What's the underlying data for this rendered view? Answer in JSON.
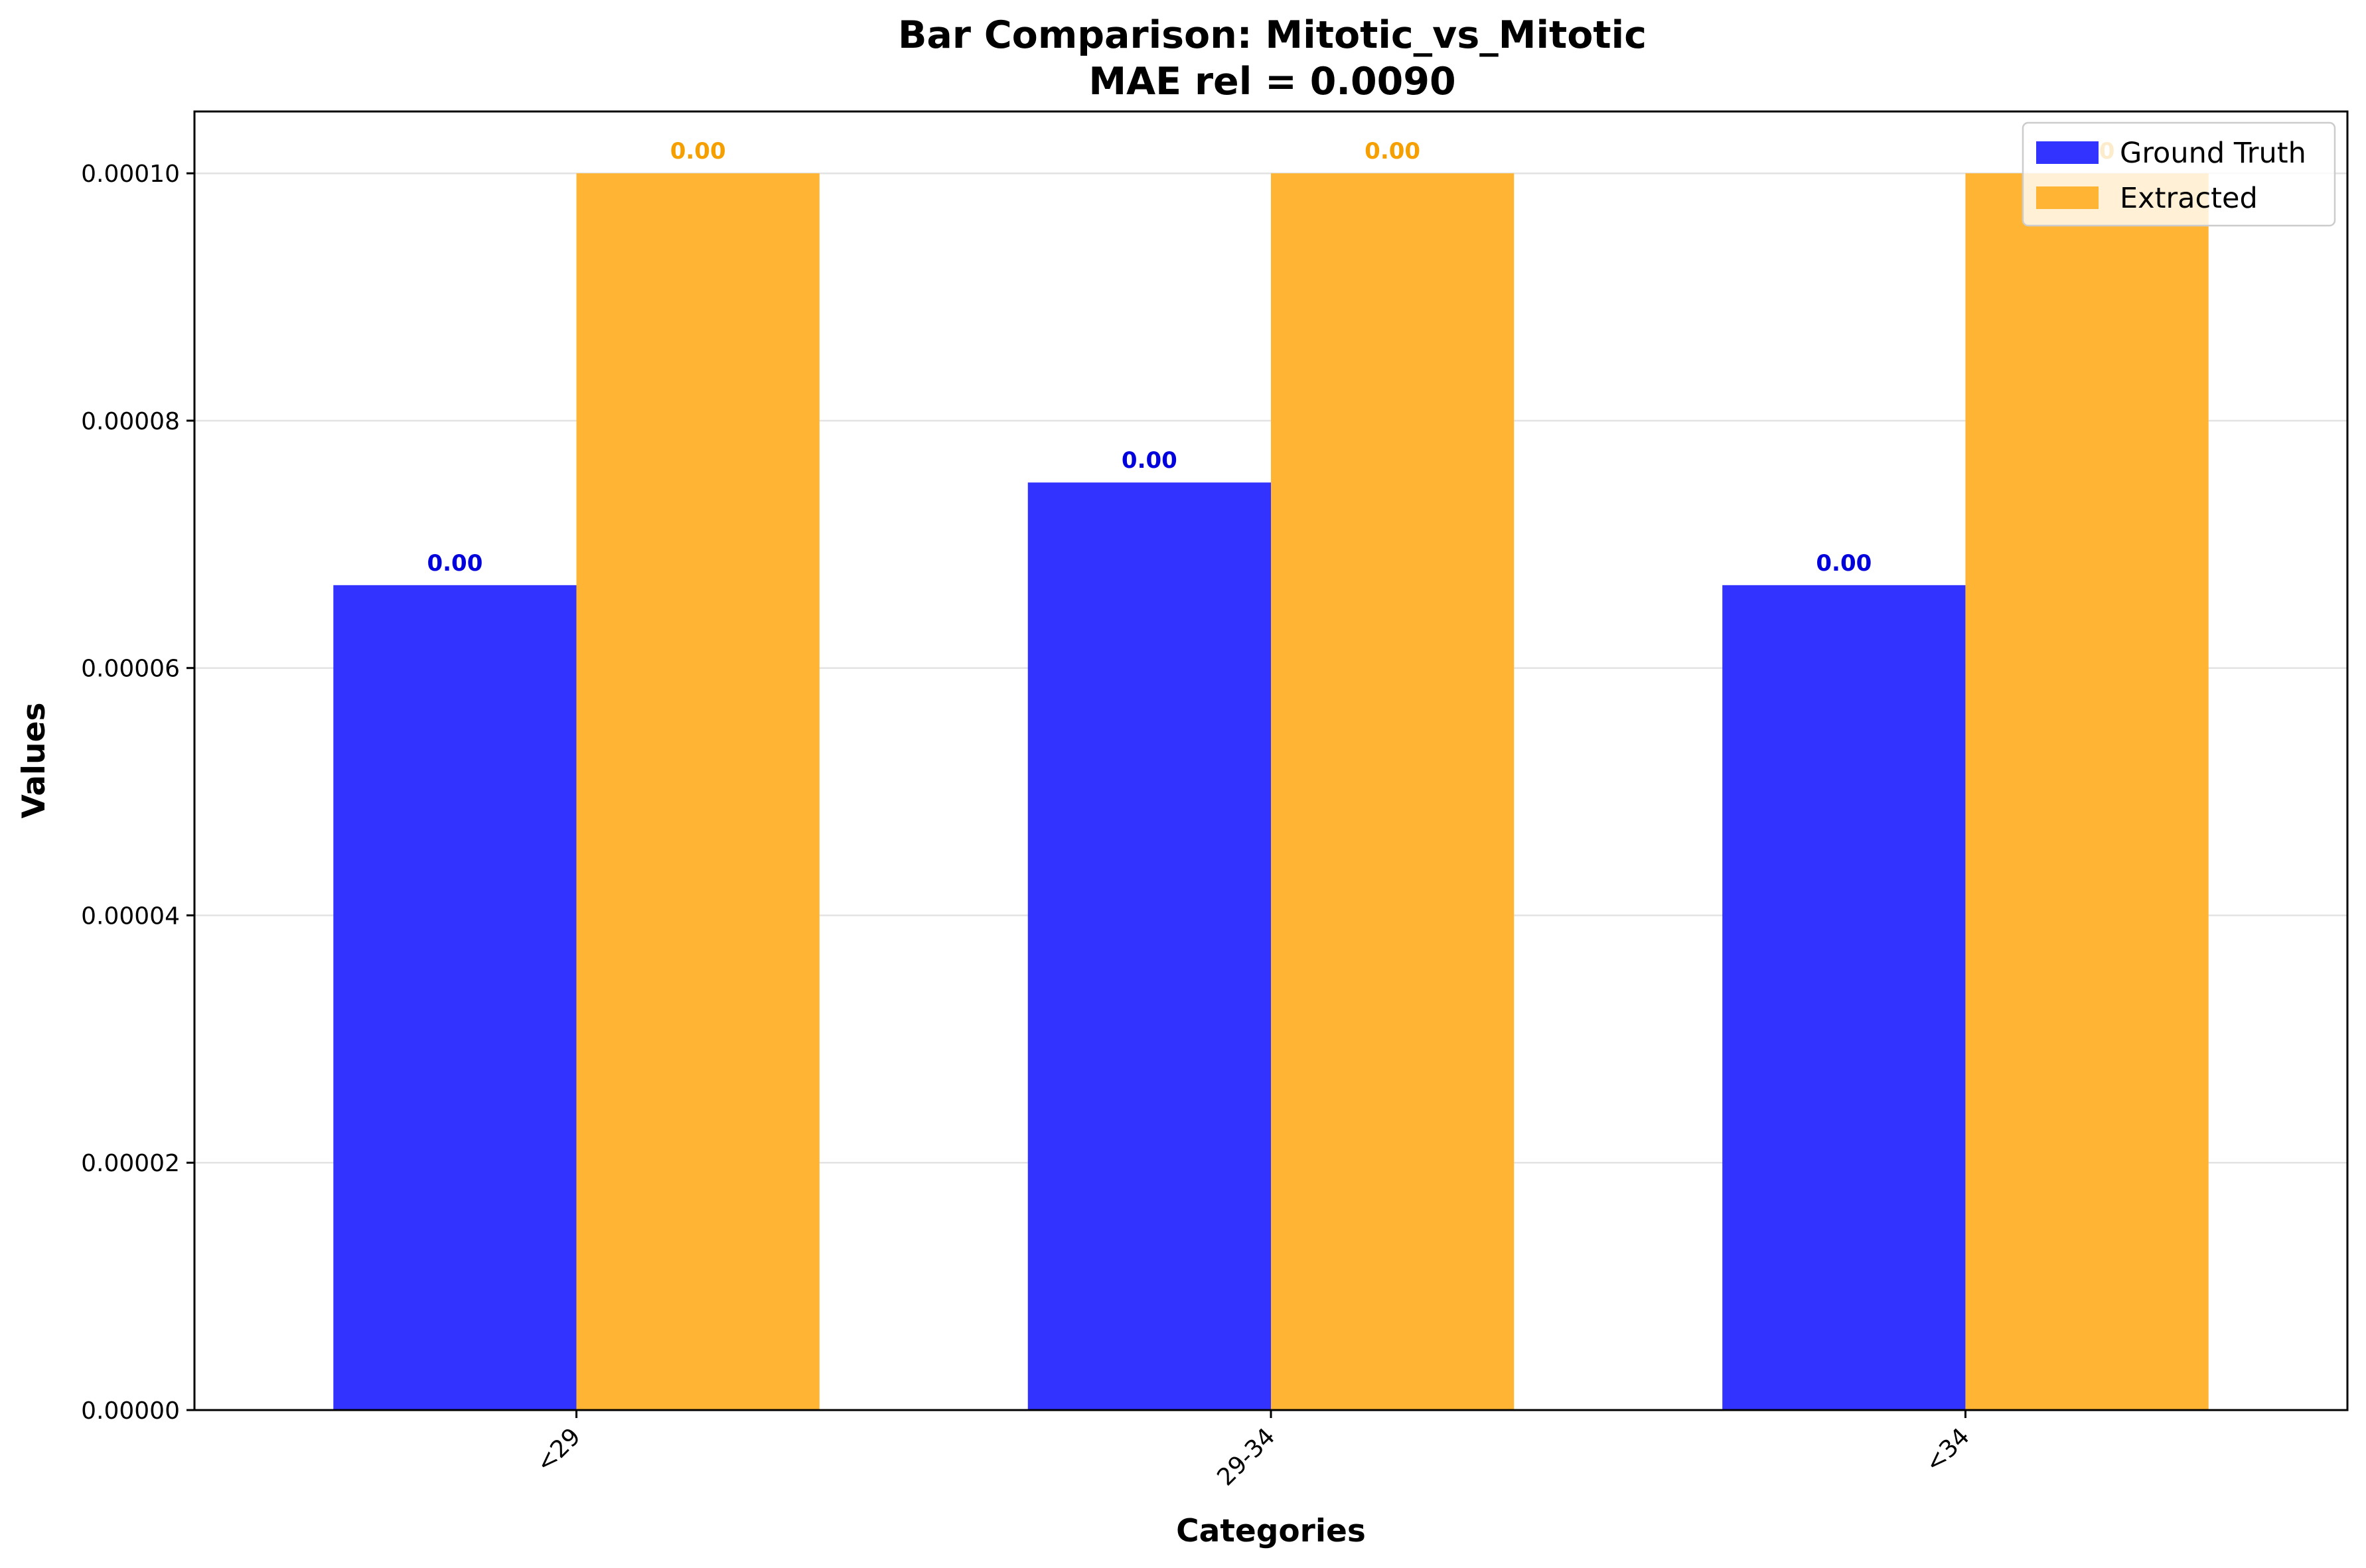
{
  "chart_data": {
    "type": "bar",
    "title": "Bar Comparison: Mitotic_vs_Mitotic",
    "subtitle": "MAE rel = 0.0090",
    "xlabel": "Categories",
    "ylabel": "Values",
    "categories": [
      "<29",
      "29-34",
      "<34"
    ],
    "series": [
      {
        "name": "Ground Truth",
        "color": "#3333ff",
        "label_color": "#0000dd",
        "values": [
          6.67e-05,
          7.5e-05,
          6.67e-05
        ],
        "data_labels": [
          "0.00",
          "0.00",
          "0.00"
        ]
      },
      {
        "name": "Extracted",
        "color": "#ffb533",
        "label_color": "#f5a000",
        "values": [
          0.0001,
          0.0001,
          0.0001
        ],
        "data_labels": [
          "0.00",
          "0.00",
          "0.00"
        ]
      }
    ],
    "ylim": [
      0,
      0.000105
    ],
    "yticks": [
      0,
      2e-05,
      4e-05,
      6e-05,
      8e-05,
      0.0001
    ],
    "ytick_labels": [
      "0.00000",
      "0.00002",
      "0.00004",
      "0.00006",
      "0.00008",
      "0.00010"
    ],
    "grid": "horizontal",
    "legend_position": "top-right"
  }
}
